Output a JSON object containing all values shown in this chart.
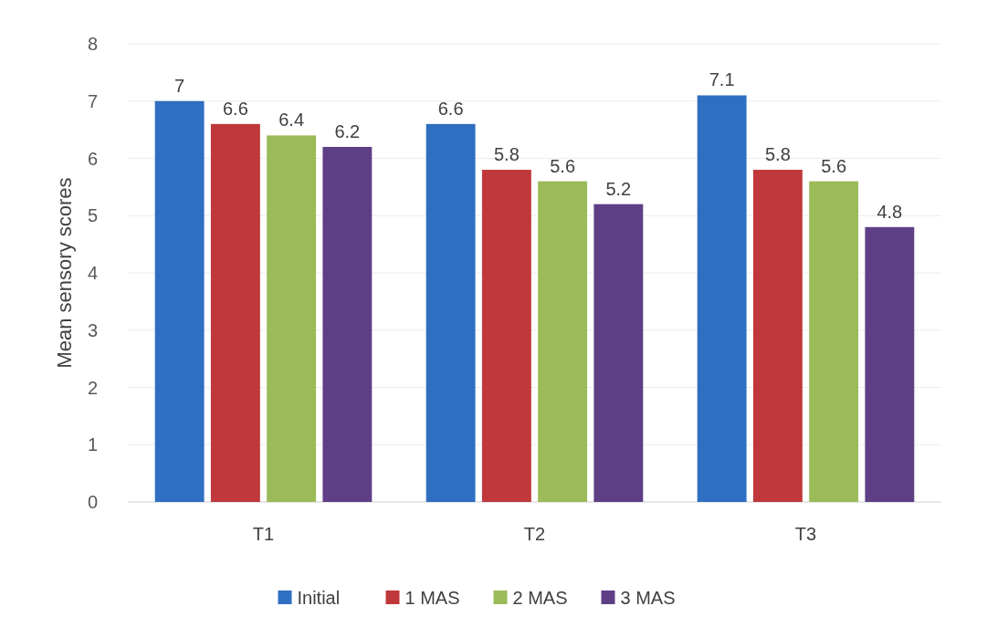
{
  "chart_data": {
    "type": "bar",
    "ylabel": "Mean sensory scores",
    "categories": [
      "T1",
      "T2",
      "T3"
    ],
    "series": [
      {
        "name": "Initial",
        "color": "#2f6fc1",
        "values": [
          7,
          6.6,
          7.1
        ]
      },
      {
        "name": "1 MAS",
        "color": "#c0383b",
        "values": [
          6.6,
          5.8,
          5.8
        ]
      },
      {
        "name": "2 MAS",
        "color": "#9bbb59",
        "values": [
          6.4,
          5.6,
          5.6
        ]
      },
      {
        "name": "3 MAS",
        "color": "#5e3f86",
        "values": [
          6.2,
          5.2,
          4.8
        ]
      }
    ],
    "ylim": [
      0,
      8
    ],
    "yticks": [
      0,
      1,
      2,
      3,
      4,
      5,
      6,
      7,
      8
    ],
    "grid": "y",
    "legend": "bottom",
    "data_labels": true
  }
}
